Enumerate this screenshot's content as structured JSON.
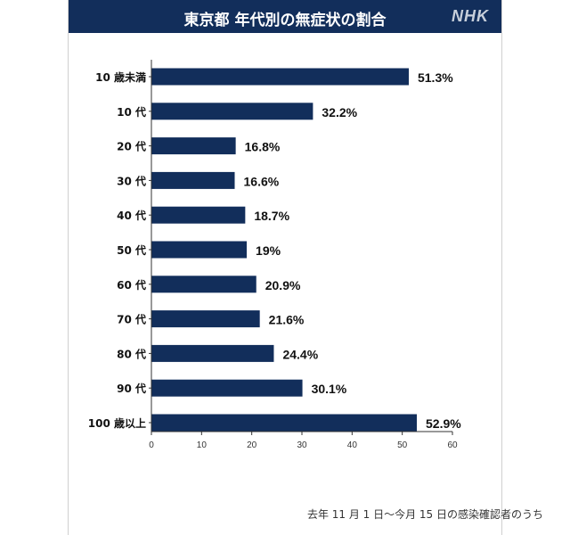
{
  "header": {
    "title": "東京都 年代別の無症状の割合",
    "logo": "NHK"
  },
  "footnote": "去年 11 月 1 日〜今月 15 日の感染確認者のうち",
  "colors": {
    "bar": "#122e5b",
    "header": "#122e5b",
    "axis": "#333333"
  },
  "chart_data": {
    "type": "bar",
    "orientation": "horizontal",
    "title": "東京都 年代別の無症状の割合",
    "categories": [
      "10 歳未満",
      "10 代",
      "20 代",
      "30 代",
      "40 代",
      "50 代",
      "60 代",
      "70 代",
      "80 代",
      "90 代",
      "100 歳以上"
    ],
    "values": [
      51.3,
      32.2,
      16.8,
      16.6,
      18.7,
      19,
      20.9,
      21.6,
      24.4,
      30.1,
      52.9
    ],
    "value_labels": [
      "51.3%",
      "32.2%",
      "16.8%",
      "16.6%",
      "18.7%",
      "19%",
      "20.9%",
      "21.6%",
      "24.4%",
      "30.1%",
      "52.9%"
    ],
    "xlim": [
      0,
      60
    ],
    "xticks": [
      "0",
      "10",
      "20",
      "30",
      "40",
      "50",
      "60"
    ],
    "grid": false,
    "legend": "none"
  }
}
